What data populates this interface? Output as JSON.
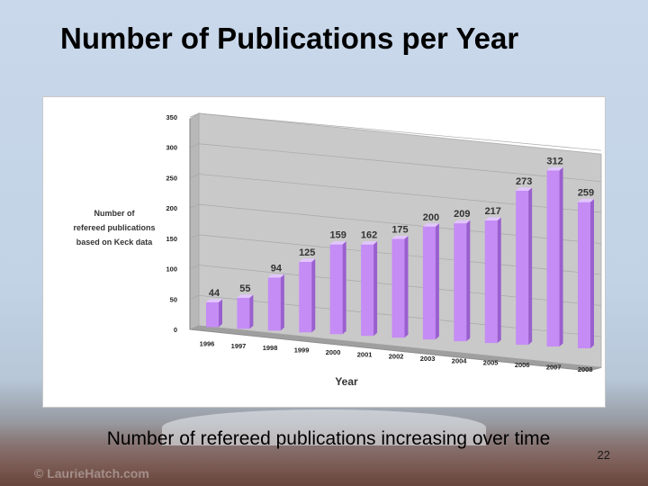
{
  "slide": {
    "title": "Number of Publications per Year",
    "caption": "Number of refereed publications increasing over time",
    "page_number": "22",
    "watermark": "© LaurieHatch.com"
  },
  "chart_data": {
    "type": "bar",
    "categories": [
      "1996",
      "1997",
      "1998",
      "1999",
      "2000",
      "2001",
      "2002",
      "2003",
      "2004",
      "2005",
      "2006",
      "2007",
      "2008"
    ],
    "values": [
      44,
      55,
      94,
      125,
      159,
      162,
      175,
      200,
      209,
      217,
      273,
      312,
      259
    ],
    "title": "",
    "xlabel": "Year",
    "ylabel": "Number of refereed publications based on Keck data",
    "ylabel_lines": [
      "Number of",
      "refereed publications",
      "based on Keck data"
    ],
    "ylim": [
      0,
      350
    ],
    "yticks": [
      0,
      50,
      100,
      150,
      200,
      250,
      300,
      350
    ],
    "grid": true,
    "bar_color": "#c58cf5",
    "bar_side_color": "#9a5fcf",
    "bar_top_color": "#e2c6ff"
  }
}
